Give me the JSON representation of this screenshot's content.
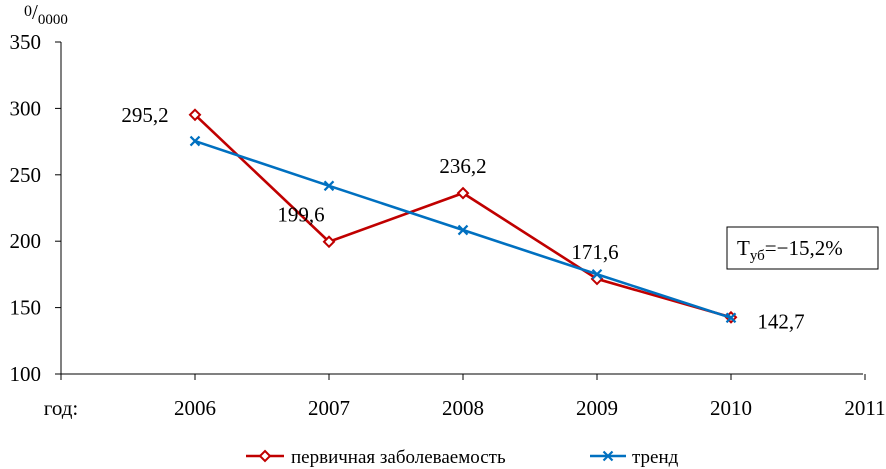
{
  "chart_data": {
    "type": "line",
    "unit_label": "⁰/₀₀₀₀",
    "x_prefix_label": "год:",
    "categories": [
      "2006",
      "2007",
      "2008",
      "2009",
      "2010",
      "2011"
    ],
    "ylim": [
      100,
      350
    ],
    "yticks": [
      "350",
      "300",
      "250",
      "200",
      "150",
      "100"
    ],
    "ytick_values": [
      350,
      300,
      250,
      200,
      150,
      100
    ],
    "series": [
      {
        "name": "первичная заболеваемость",
        "color": "#C00000",
        "marker": "diamond",
        "x": [
          "2006",
          "2007",
          "2008",
          "2009",
          "2010"
        ],
        "values": [
          295.2,
          199.6,
          236.2,
          171.6,
          142.7
        ],
        "labels": [
          "295,2",
          "199,6",
          "236,2",
          "171,6",
          "142,7"
        ]
      },
      {
        "name": "тренд",
        "color": "#0070C0",
        "marker": "x",
        "x": [
          "2006",
          "2007",
          "2008",
          "2009",
          "2010"
        ],
        "values": [
          275.4,
          241.7,
          208.4,
          175.1,
          142.3
        ]
      }
    ],
    "annotation": {
      "main": "Т",
      "sub": "уб",
      "value": "=−15,2%"
    },
    "legend_position": "bottom-center",
    "grid": false
  }
}
